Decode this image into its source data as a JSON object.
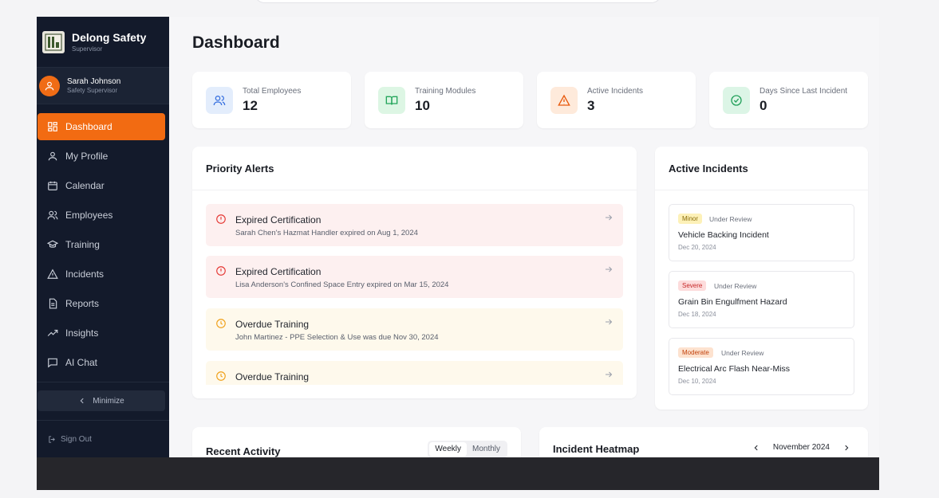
{
  "brand": {
    "name": "Delong Safety",
    "role": "Supervisor"
  },
  "user": {
    "name": "Sarah Johnson",
    "role": "Safety Supervisor"
  },
  "nav": [
    {
      "label": "Dashboard",
      "icon": "dashboard-icon",
      "active": true
    },
    {
      "label": "My Profile",
      "icon": "user-icon"
    },
    {
      "label": "Calendar",
      "icon": "calendar-icon"
    },
    {
      "label": "Employees",
      "icon": "users-icon"
    },
    {
      "label": "Training",
      "icon": "graduation-cap-icon"
    },
    {
      "label": "Incidents",
      "icon": "warning-triangle-icon"
    },
    {
      "label": "Reports",
      "icon": "document-icon"
    },
    {
      "label": "Insights",
      "icon": "trend-icon"
    },
    {
      "label": "AI Chat",
      "icon": "chat-icon"
    }
  ],
  "minimize_label": "Minimize",
  "signout_label": "Sign Out",
  "page_title": "Dashboard",
  "stats": [
    {
      "label": "Total Employees",
      "value": "12",
      "icon": "users-icon",
      "bg": "#e3edfc",
      "fg": "#3b73e0"
    },
    {
      "label": "Training Modules",
      "value": "10",
      "icon": "book-icon",
      "bg": "#ddf6e4",
      "fg": "#23a55a"
    },
    {
      "label": "Active Incidents",
      "value": "3",
      "icon": "warning-icon",
      "bg": "#feeadb",
      "fg": "#e8590c"
    },
    {
      "label": "Days Since Last Incident",
      "value": "0",
      "icon": "check-circle-icon",
      "bg": "#dcf5e6",
      "fg": "#22a05a"
    }
  ],
  "alerts": {
    "title": "Priority Alerts",
    "items": [
      {
        "type": "red",
        "title": "Expired Certification",
        "desc": "Sarah Chen's Hazmat Handler expired on Aug 1, 2024"
      },
      {
        "type": "red",
        "title": "Expired Certification",
        "desc": "Lisa Anderson's Confined Space Entry expired on Mar 15, 2024"
      },
      {
        "type": "yel",
        "title": "Overdue Training",
        "desc": "John Martinez - PPE Selection & Use was due Nov 30, 2024"
      },
      {
        "type": "yel",
        "title": "Overdue Training",
        "desc": ""
      }
    ]
  },
  "incidents": {
    "title": "Active Incidents",
    "items": [
      {
        "severity": "Minor",
        "sev_bg": "#fdf1b8",
        "sev_fg": "#8a6d0b",
        "status": "Under Review",
        "title": "Vehicle Backing Incident",
        "date": "Dec 20, 2024"
      },
      {
        "severity": "Severe",
        "sev_bg": "#fddcdc",
        "sev_fg": "#c62828",
        "status": "Under Review",
        "title": "Grain Bin Engulfment Hazard",
        "date": "Dec 18, 2024"
      },
      {
        "severity": "Moderate",
        "sev_bg": "#fde2cf",
        "sev_fg": "#c2410c",
        "status": "Under Review",
        "title": "Electrical Arc Flash Near-Miss",
        "date": "Dec 10, 2024"
      }
    ]
  },
  "activity": {
    "title": "Recent Activity",
    "weekly": "Weekly",
    "monthly": "Monthly"
  },
  "heatmap": {
    "title": "Incident Heatmap",
    "month": "November 2024"
  }
}
